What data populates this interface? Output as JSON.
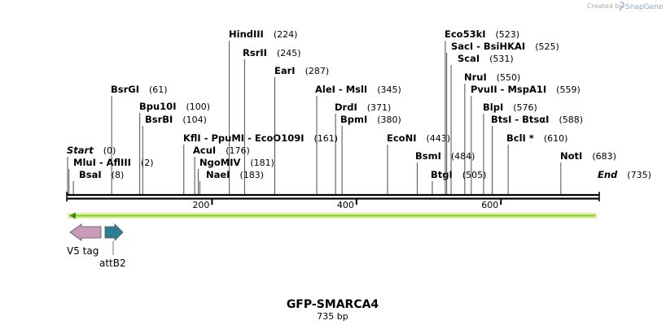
{
  "watermark": {
    "created_by": "Created by",
    "brand": "SnapGene"
  },
  "map": {
    "name": "GFP-SMARCA4",
    "length_label": "735 bp",
    "total_bp": 735
  },
  "ends": [
    {
      "label": "Start",
      "pos_text": "(0)",
      "pos": 0
    },
    {
      "label": "End",
      "pos_text": "(735)",
      "pos": 735
    }
  ],
  "sites": [
    {
      "name": "MluI  -  AflIII",
      "pos_text": "(2)",
      "pos": 2
    },
    {
      "name": "BsaI",
      "pos_text": "(8)",
      "pos": 8
    },
    {
      "name": "BsrGI",
      "pos_text": "(61)",
      "pos": 61
    },
    {
      "name": "Bpu10I",
      "pos_text": "(100)",
      "pos": 100
    },
    {
      "name": "BsrBI",
      "pos_text": "(104)",
      "pos": 104
    },
    {
      "name": "KflI  -  PpuMI  -  EcoO109I",
      "pos_text": "(161)",
      "pos": 161
    },
    {
      "name": "AcuI",
      "pos_text": "(176)",
      "pos": 176
    },
    {
      "name": "NgoMIV",
      "pos_text": "(181)",
      "pos": 181
    },
    {
      "name": "NaeI",
      "pos_text": "(183)",
      "pos": 183
    },
    {
      "name": "HindIII",
      "pos_text": "(224)",
      "pos": 224
    },
    {
      "name": "RsrII",
      "pos_text": "(245)",
      "pos": 245
    },
    {
      "name": "EarI",
      "pos_text": "(287)",
      "pos": 287
    },
    {
      "name": "AleI  -  MslI",
      "pos_text": "(345)",
      "pos": 345
    },
    {
      "name": "DrdI",
      "pos_text": "(371)",
      "pos": 371
    },
    {
      "name": "BpmI",
      "pos_text": "(380)",
      "pos": 380
    },
    {
      "name": "EcoNI",
      "pos_text": "(443)",
      "pos": 443
    },
    {
      "name": "BsmI",
      "pos_text": "(484)",
      "pos": 484
    },
    {
      "name": "BtgI",
      "pos_text": "(505)",
      "pos": 505
    },
    {
      "name": "Eco53kI",
      "pos_text": "(523)",
      "pos": 523
    },
    {
      "name": "SacI  -  BsiHKAI",
      "pos_text": "(525)",
      "pos": 525
    },
    {
      "name": "ScaI",
      "pos_text": "(531)",
      "pos": 531
    },
    {
      "name": "NruI",
      "pos_text": "(550)",
      "pos": 550
    },
    {
      "name": "PvuII  -  MspA1I",
      "pos_text": "(559)",
      "pos": 559
    },
    {
      "name": "BlpI",
      "pos_text": "(576)",
      "pos": 576
    },
    {
      "name": "BtsI  -  BtsαI",
      "pos_text": "(588)",
      "pos": 588
    },
    {
      "name": "BclI *",
      "pos_text": "(610)",
      "pos": 610
    },
    {
      "name": "NotI",
      "pos_text": "(683)",
      "pos": 683
    }
  ],
  "ruler_ticks": [
    {
      "label": "200",
      "pos": 200
    },
    {
      "label": "400",
      "pos": 400
    },
    {
      "label": "600",
      "pos": 600
    }
  ],
  "orf": {
    "direction": "reverse",
    "color": "#7fcf2a"
  },
  "features": [
    {
      "name": "V5 tag",
      "direction": "reverse",
      "color": "#c99aba"
    },
    {
      "name": "attB2",
      "direction": "forward",
      "color": "#2f7d92"
    }
  ]
}
